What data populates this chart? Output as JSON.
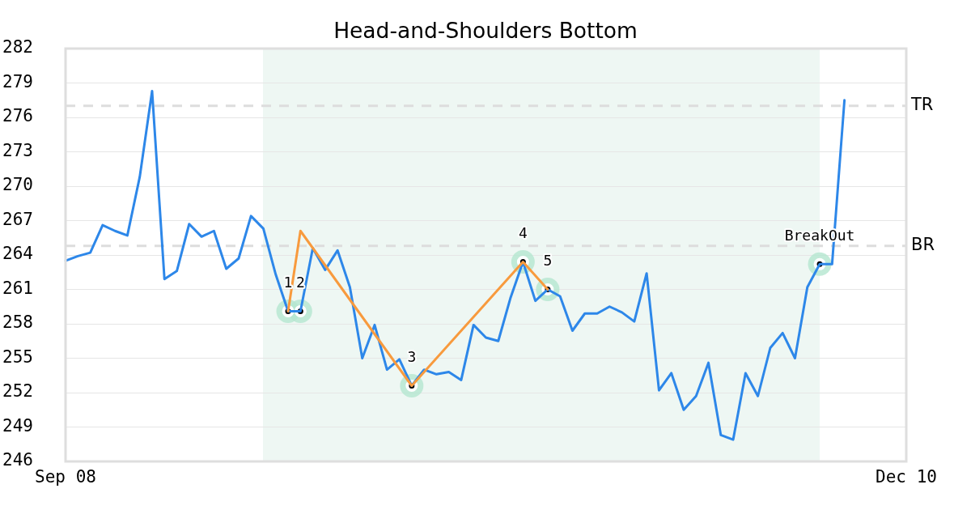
{
  "chart_data": {
    "type": "line",
    "title": "Head-and-Shoulders Bottom",
    "categories": [
      "Sep 08",
      null,
      null,
      null,
      null,
      null,
      null,
      null,
      null,
      null,
      null,
      null,
      null,
      null,
      null,
      null,
      null,
      null,
      null,
      null,
      null,
      null,
      null,
      null,
      null,
      null,
      null,
      null,
      null,
      null,
      null,
      null,
      null,
      null,
      null,
      null,
      null,
      null,
      null,
      null,
      null,
      null,
      null,
      null,
      null,
      null,
      null,
      null,
      null,
      null,
      null,
      null,
      null,
      null,
      null,
      null,
      null,
      null,
      null,
      null,
      null,
      null,
      null,
      null,
      null,
      null,
      null,
      null,
      "Dec 10"
    ],
    "ylim": [
      246,
      282
    ],
    "yticks": [
      246,
      249,
      252,
      255,
      258,
      261,
      264,
      267,
      270,
      273,
      276,
      279,
      282
    ],
    "grid": "y",
    "series": [
      {
        "color": "#2d87e9",
        "values": [
          263.5,
          263.9,
          264.2,
          266.6,
          266.1,
          265.7,
          270.8,
          278.3,
          261.9,
          262.6,
          266.7,
          265.6,
          266.1,
          262.8,
          263.7,
          267.4,
          266.3,
          262.3,
          259.1,
          259.1,
          264.6,
          262.7,
          264.4,
          261.2,
          255.0,
          257.9,
          254.0,
          254.9,
          252.6,
          254.0,
          253.6,
          253.8,
          253.1,
          257.9,
          256.8,
          256.5,
          260.3,
          263.4,
          260.0,
          261.0,
          260.4,
          257.4,
          258.9,
          258.9,
          259.5,
          259.0,
          258.2,
          262.4,
          252.2,
          253.7,
          250.5,
          251.7,
          254.6,
          248.3,
          247.9,
          253.7,
          251.7,
          255.9,
          257.2,
          255.0,
          261.2,
          263.2,
          263.2,
          277.5,
          null,
          null,
          null,
          null,
          null
        ]
      },
      {
        "type": "line",
        "color": "#f89a3d",
        "values": [
          null,
          null,
          null,
          null,
          null,
          null,
          null,
          null,
          null,
          null,
          null,
          null,
          null,
          null,
          null,
          null,
          null,
          null,
          259.1,
          266.1,
          null,
          null,
          null,
          null,
          null,
          null,
          null,
          null,
          252.6,
          null,
          null,
          null,
          null,
          null,
          null,
          null,
          null,
          263.4,
          null,
          261.0,
          null,
          null,
          null,
          null,
          null,
          null,
          null,
          null,
          null,
          null,
          null,
          null,
          null,
          null,
          null,
          null,
          null,
          null,
          null,
          null,
          null,
          null,
          null,
          null,
          null,
          null,
          null,
          null,
          null
        ]
      },
      {
        "type": "scatter",
        "color": "#b4e6cf",
        "marker": "circle",
        "values": [
          null,
          null,
          null,
          null,
          null,
          null,
          null,
          null,
          null,
          null,
          null,
          null,
          null,
          null,
          null,
          null,
          null,
          null,
          259.1,
          259.1,
          null,
          null,
          null,
          null,
          null,
          null,
          null,
          null,
          252.6,
          null,
          null,
          null,
          null,
          null,
          null,
          null,
          null,
          263.4,
          null,
          261.0,
          null,
          null,
          null,
          null,
          null,
          null,
          null,
          null,
          null,
          null,
          null,
          null,
          null,
          null,
          null,
          null,
          null,
          null,
          null,
          null,
          null,
          263.2,
          null,
          null,
          null,
          null,
          null,
          null,
          null
        ]
      }
    ],
    "ref_lines": [
      {
        "axis": "y",
        "value": 277.0,
        "label": "TR",
        "color": "#dddddd",
        "line_style": "dashed"
      },
      {
        "axis": "y",
        "value": 264.8,
        "label": "BR",
        "color": "#dddddd",
        "line_style": "dashed"
      }
    ],
    "annotations": [
      {
        "text": "1",
        "y": 259.1
      },
      {
        "text": "2",
        "y": 259.1
      },
      {
        "text": "3",
        "y": 252.6
      },
      {
        "text": "4",
        "y": 263.4
      },
      {
        "text": "5",
        "y": 261.0
      },
      {
        "text": "BreakOut",
        "y": 263.2
      }
    ]
  }
}
